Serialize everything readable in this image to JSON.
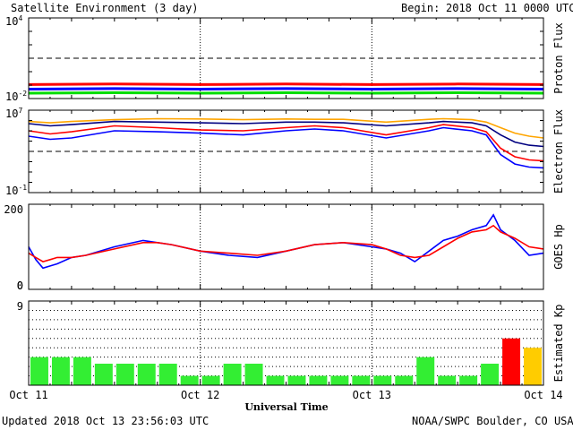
{
  "header": {
    "title": "Satellite Environment (3 day)",
    "begin_label": "Begin:",
    "begin_value": "2018 Oct 11 0000 UTC"
  },
  "footer": {
    "updated": "Updated 2018 Oct 13 23:56:03 UTC",
    "credit": "NOAA/SWPC Boulder, CO USA",
    "xlabel": "Universal Time"
  },
  "x_ticks": [
    "Oct 11",
    "Oct 12",
    "Oct 13",
    "Oct 14"
  ],
  "chart_data": [
    {
      "type": "line",
      "ylabel": "Proton Flux",
      "yscale": "log",
      "ylim": [
        0.01,
        10000
      ],
      "yticks": [
        {
          "value": 10000,
          "base": "10",
          "exp": "4"
        },
        {
          "value": 0.01,
          "base": "10",
          "exp": "-2"
        }
      ],
      "threshold": 10,
      "x_range_hours": [
        0,
        72
      ],
      "series": [
        {
          "color": "#ff0000",
          "x": [
            0,
            12,
            24,
            36,
            48,
            60,
            72
          ],
          "y": [
            0.11,
            0.12,
            0.11,
            0.12,
            0.11,
            0.12,
            0.11
          ]
        },
        {
          "color": "#0000ff",
          "x": [
            0,
            12,
            24,
            36,
            48,
            60,
            72
          ],
          "y": [
            0.05,
            0.055,
            0.05,
            0.055,
            0.05,
            0.055,
            0.05
          ]
        },
        {
          "color": "#00dd00",
          "x": [
            0,
            12,
            24,
            36,
            48,
            60,
            72
          ],
          "y": [
            0.025,
            0.027,
            0.025,
            0.027,
            0.025,
            0.027,
            0.025
          ]
        }
      ]
    },
    {
      "type": "line",
      "ylabel": "Electron Flux",
      "yscale": "log",
      "ylim": [
        0.1,
        10000000
      ],
      "yticks": [
        {
          "value": 10000000,
          "base": "10",
          "exp": "7"
        },
        {
          "value": 0.1,
          "base": "10",
          "exp": "-1"
        }
      ],
      "threshold": 1000,
      "x_range_hours": [
        0,
        72
      ],
      "series": [
        {
          "color": "#ffa500",
          "x": [
            0,
            3,
            6,
            12,
            18,
            24,
            30,
            36,
            40,
            44,
            50,
            56,
            58,
            62,
            64,
            66,
            68,
            70,
            72
          ],
          "y": [
            800000,
            600000,
            800000,
            1200000,
            1500000,
            1400000,
            1200000,
            1400000,
            1300000,
            1300000,
            700000,
            1300000,
            1500000,
            1200000,
            700000,
            200000,
            60000,
            30000,
            20000
          ]
        },
        {
          "color": "#000080",
          "x": [
            0,
            3,
            6,
            12,
            18,
            24,
            30,
            36,
            40,
            44,
            50,
            56,
            58,
            62,
            64,
            66,
            68,
            70,
            72
          ],
          "y": [
            500000,
            300000,
            400000,
            800000,
            700000,
            600000,
            500000,
            700000,
            700000,
            600000,
            300000,
            600000,
            800000,
            600000,
            300000,
            40000,
            8000,
            4000,
            3000
          ]
        },
        {
          "color": "#ff0000",
          "x": [
            0,
            3,
            6,
            12,
            18,
            24,
            30,
            36,
            40,
            44,
            50,
            56,
            58,
            62,
            64,
            66,
            68,
            70,
            72
          ],
          "y": [
            100000,
            50000,
            80000,
            300000,
            200000,
            120000,
            100000,
            200000,
            300000,
            200000,
            40000,
            200000,
            400000,
            200000,
            80000,
            2000,
            300,
            150,
            120
          ]
        },
        {
          "color": "#0000ff",
          "x": [
            0,
            3,
            6,
            12,
            18,
            24,
            30,
            36,
            40,
            44,
            50,
            56,
            58,
            62,
            64,
            66,
            68,
            70,
            72
          ],
          "y": [
            30000,
            15000,
            20000,
            100000,
            80000,
            60000,
            40000,
            100000,
            150000,
            100000,
            20000,
            100000,
            200000,
            100000,
            40000,
            500,
            60,
            30,
            25
          ]
        }
      ]
    },
    {
      "type": "line",
      "ylabel": "GOES Hp",
      "ylim": [
        0,
        200
      ],
      "yticks": [
        0,
        200
      ],
      "x_range_hours": [
        0,
        72
      ],
      "series": [
        {
          "color": "#0000ff",
          "x": [
            0,
            1,
            2,
            3,
            4,
            6,
            8,
            12,
            16,
            18,
            20,
            24,
            28,
            32,
            36,
            40,
            44,
            48,
            50,
            52,
            54,
            56,
            58,
            60,
            62,
            64,
            65,
            66,
            68,
            70,
            72
          ],
          "y": [
            100,
            70,
            50,
            55,
            60,
            75,
            80,
            100,
            115,
            110,
            105,
            90,
            80,
            75,
            90,
            105,
            110,
            100,
            95,
            85,
            65,
            90,
            115,
            125,
            140,
            150,
            175,
            140,
            115,
            80,
            85
          ]
        },
        {
          "color": "#ff0000",
          "x": [
            0,
            1,
            2,
            3,
            4,
            6,
            8,
            12,
            16,
            18,
            20,
            24,
            28,
            32,
            36,
            40,
            44,
            48,
            50,
            52,
            54,
            56,
            58,
            60,
            62,
            64,
            65,
            66,
            68,
            70,
            72
          ],
          "y": [
            85,
            75,
            65,
            70,
            75,
            75,
            80,
            95,
            110,
            110,
            105,
            90,
            85,
            80,
            90,
            105,
            110,
            105,
            95,
            80,
            75,
            80,
            100,
            120,
            135,
            140,
            150,
            135,
            120,
            100,
            95
          ]
        }
      ]
    },
    {
      "type": "bar",
      "ylabel": "Estimated Kp",
      "ylim": [
        0,
        9
      ],
      "yticks": [
        9
      ],
      "bar_hours": 3,
      "values": [
        3,
        3,
        3,
        2.3,
        2.3,
        2.3,
        2.3,
        1,
        1,
        2.3,
        2.3,
        1,
        1,
        1,
        1,
        1,
        1,
        1,
        3,
        1,
        1,
        2.3,
        5,
        4
      ],
      "colors": [
        "#33ee33",
        "#33ee33",
        "#33ee33",
        "#33ee33",
        "#33ee33",
        "#33ee33",
        "#33ee33",
        "#33ee33",
        "#33ee33",
        "#33ee33",
        "#33ee33",
        "#33ee33",
        "#33ee33",
        "#33ee33",
        "#33ee33",
        "#33ee33",
        "#33ee33",
        "#33ee33",
        "#33ee33",
        "#33ee33",
        "#33ee33",
        "#33ee33",
        "#ff0000",
        "#ffcc00"
      ]
    }
  ]
}
